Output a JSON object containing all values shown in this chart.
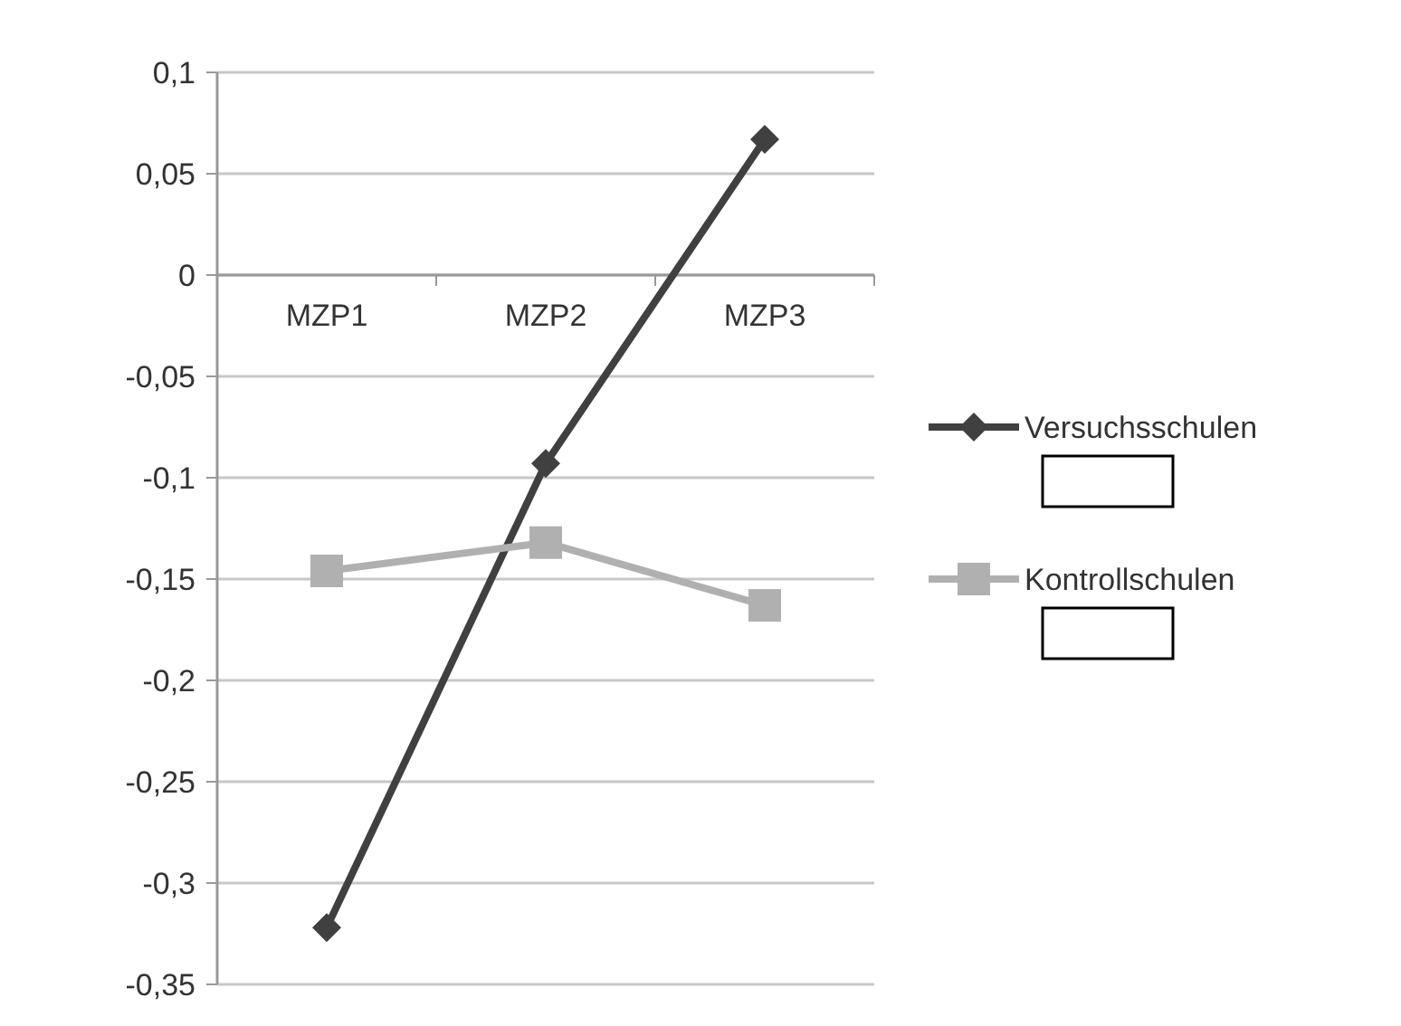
{
  "chart_data": {
    "type": "line",
    "categories": [
      "MZP1",
      "MZP2",
      "MZP3"
    ],
    "series": [
      {
        "name": "Versuchsschulen",
        "color": "#404040",
        "marker": "diamond",
        "values": [
          -0.322,
          -0.093,
          0.067
        ]
      },
      {
        "name": "Kontrollschulen",
        "color": "#b0b0b0",
        "marker": "square",
        "values": [
          -0.146,
          -0.132,
          -0.163
        ]
      }
    ],
    "ylim": [
      -0.35,
      0.1
    ],
    "yticks": [
      {
        "value": 0.1,
        "label": "0,1"
      },
      {
        "value": 0.05,
        "label": "0,05"
      },
      {
        "value": 0,
        "label": "0"
      },
      {
        "value": -0.05,
        "label": "-0,05"
      },
      {
        "value": -0.1,
        "label": "-0,1"
      },
      {
        "value": -0.15,
        "label": "-0,15"
      },
      {
        "value": -0.2,
        "label": "-0,2"
      },
      {
        "value": -0.25,
        "label": "-0,25"
      },
      {
        "value": -0.3,
        "label": "-0,3"
      },
      {
        "value": -0.35,
        "label": "-0,35"
      }
    ],
    "grid": "y",
    "legend": "right",
    "line_style": "solid"
  }
}
